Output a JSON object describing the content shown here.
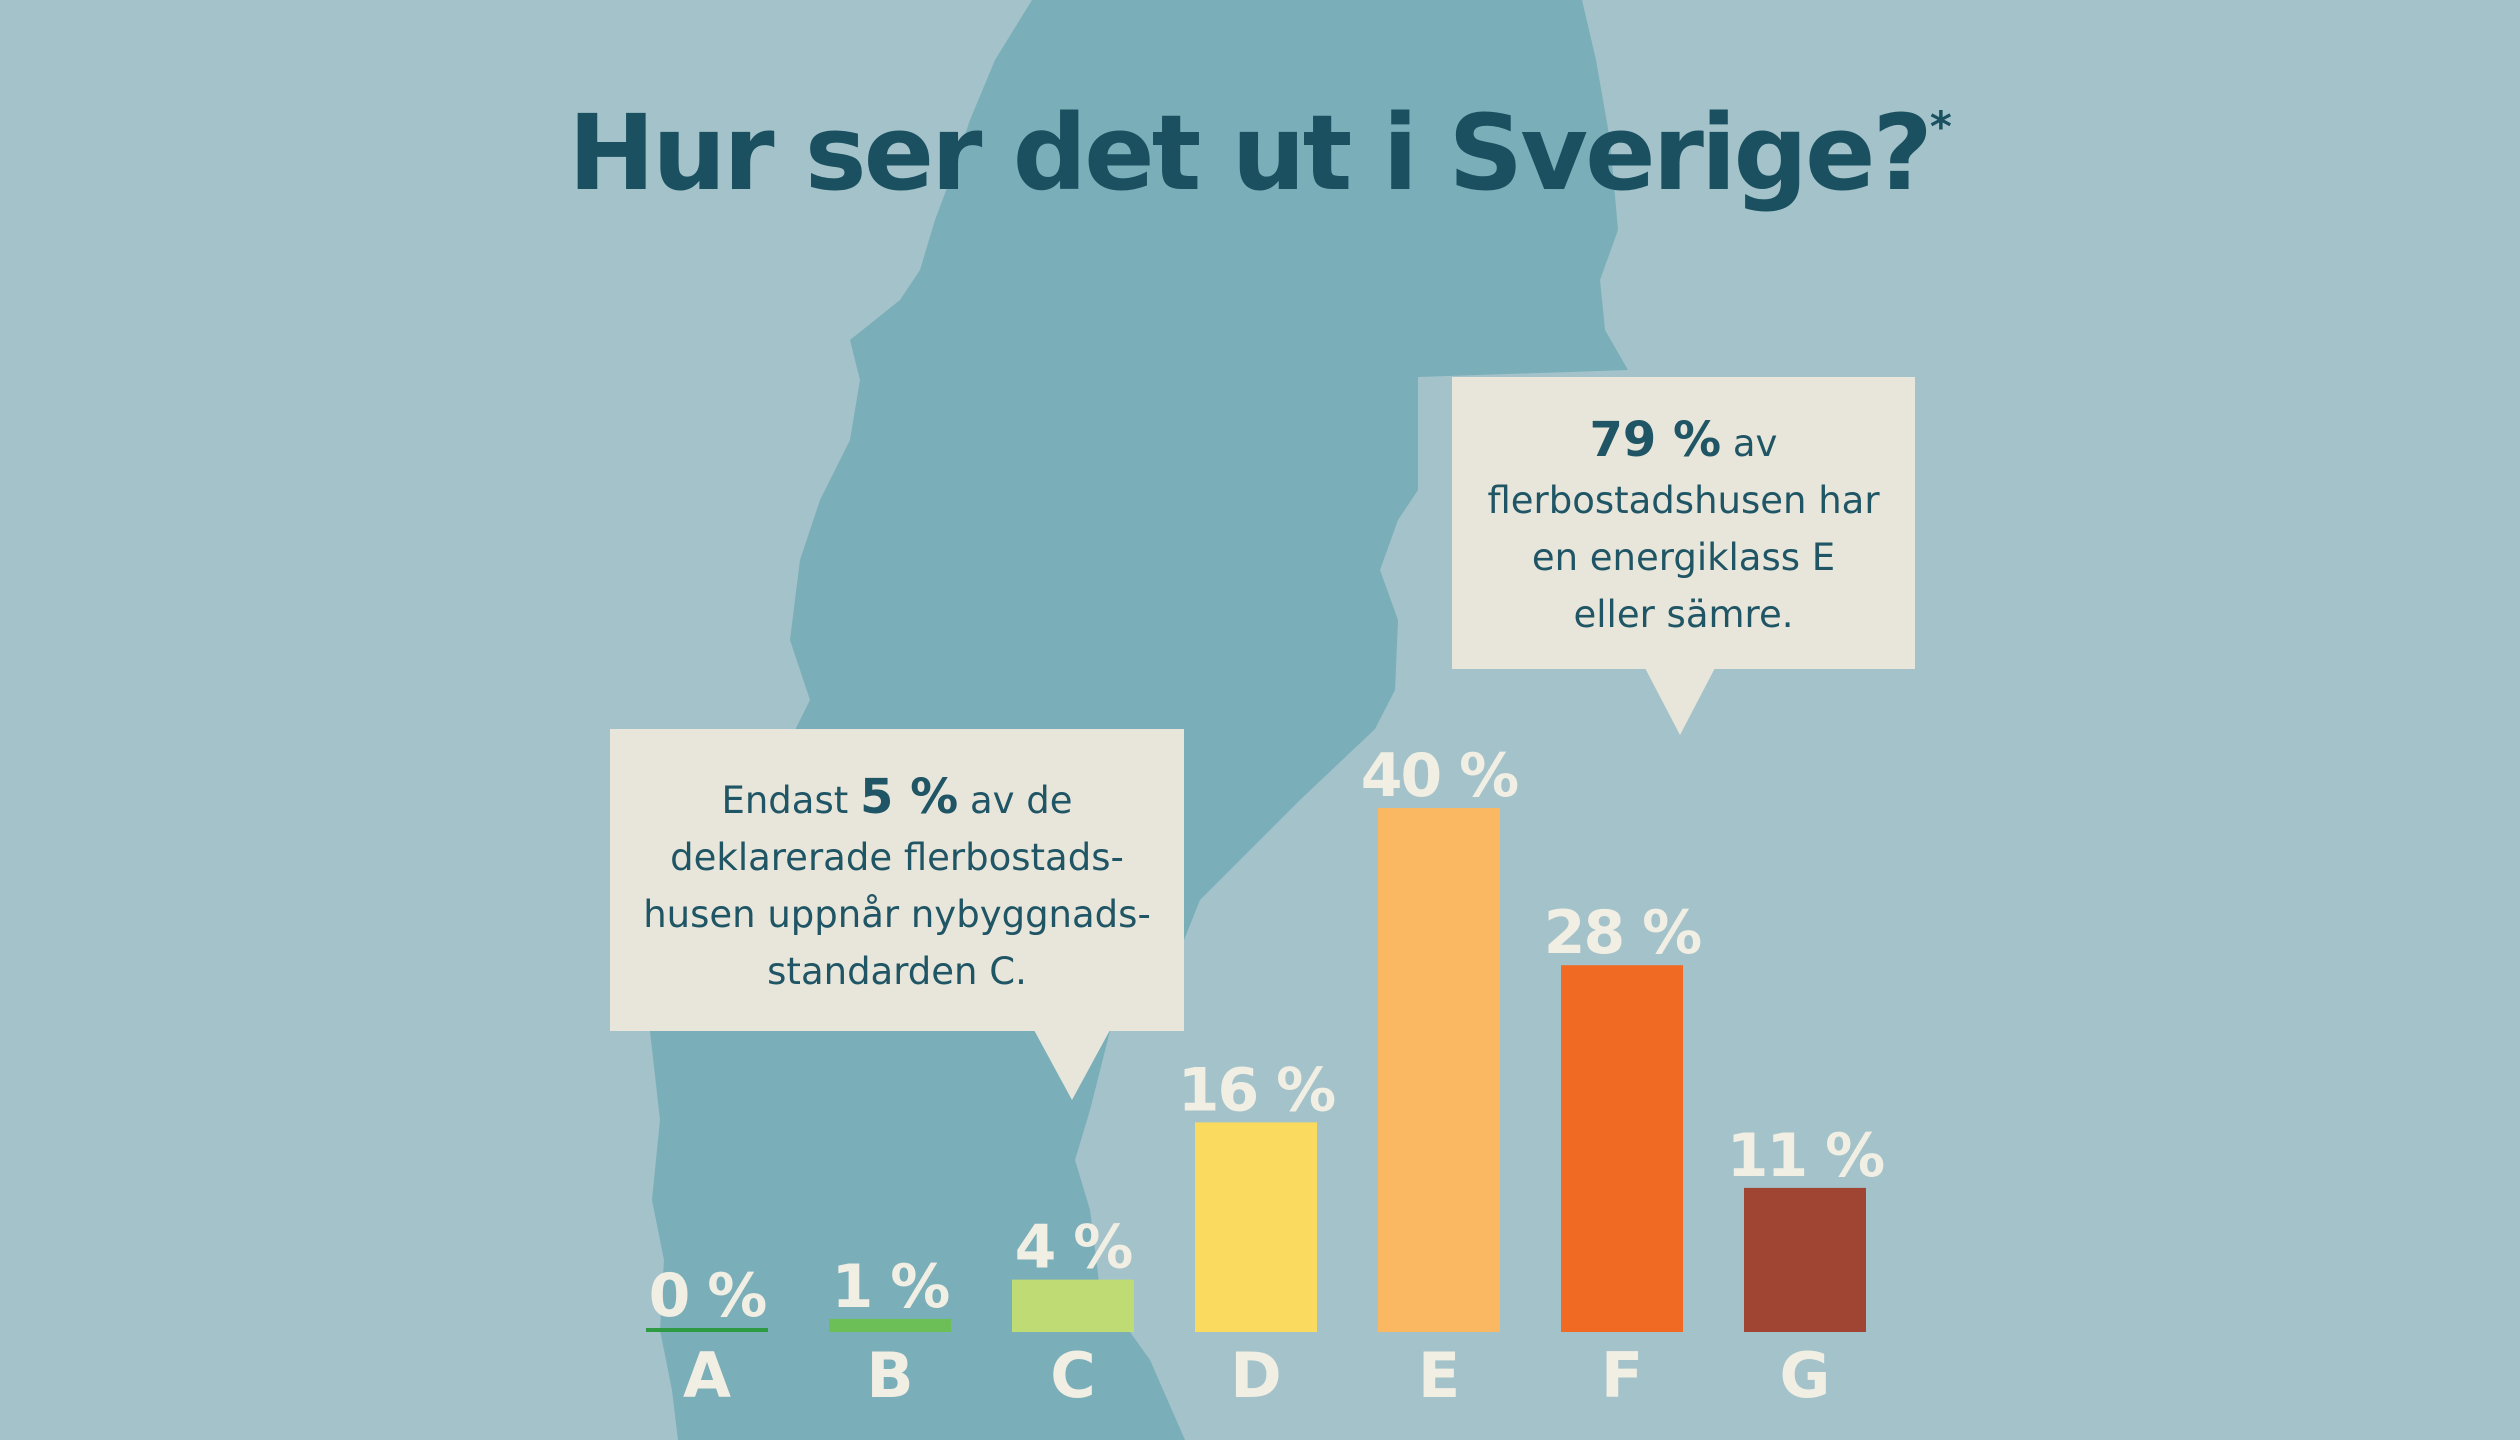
{
  "title": "Hur ser det ut i Sverige?",
  "title_mark": "*",
  "callouts": {
    "top": {
      "strong": "79 %",
      "after": " av",
      "line2": "flerbostadshusen har",
      "line3": "en energiklass E",
      "line4": "eller sämre."
    },
    "left": {
      "before": "Endast ",
      "strong": "5 %",
      "after": " av de",
      "line2": "deklarerade flerbostads-",
      "line3": "husen uppnår nybyggnads-",
      "line4": "standarden C."
    }
  },
  "chart_data": {
    "type": "bar",
    "title": "Hur ser det ut i Sverige?",
    "categories": [
      "A",
      "B",
      "C",
      "D",
      "E",
      "F",
      "G"
    ],
    "values": [
      0,
      1,
      4,
      16,
      40,
      28,
      11
    ],
    "value_labels": [
      "0 %",
      "1 %",
      "4 %",
      "16 %",
      "40 %",
      "28 %",
      "11 %"
    ],
    "unit": "%",
    "colors": [
      "#2e9a44",
      "#6cbf57",
      "#bfdb74",
      "#fadb5f",
      "#fbb862",
      "#f06a23",
      "#a04533"
    ],
    "ylim": [
      0,
      40
    ],
    "grid": false,
    "legend": "none"
  },
  "colors": {
    "background": "#a3c2c9",
    "map": "#7aaeb9",
    "title": "#1a5060",
    "callout_bg": "#e8e6da",
    "label": "#f1eee4"
  }
}
